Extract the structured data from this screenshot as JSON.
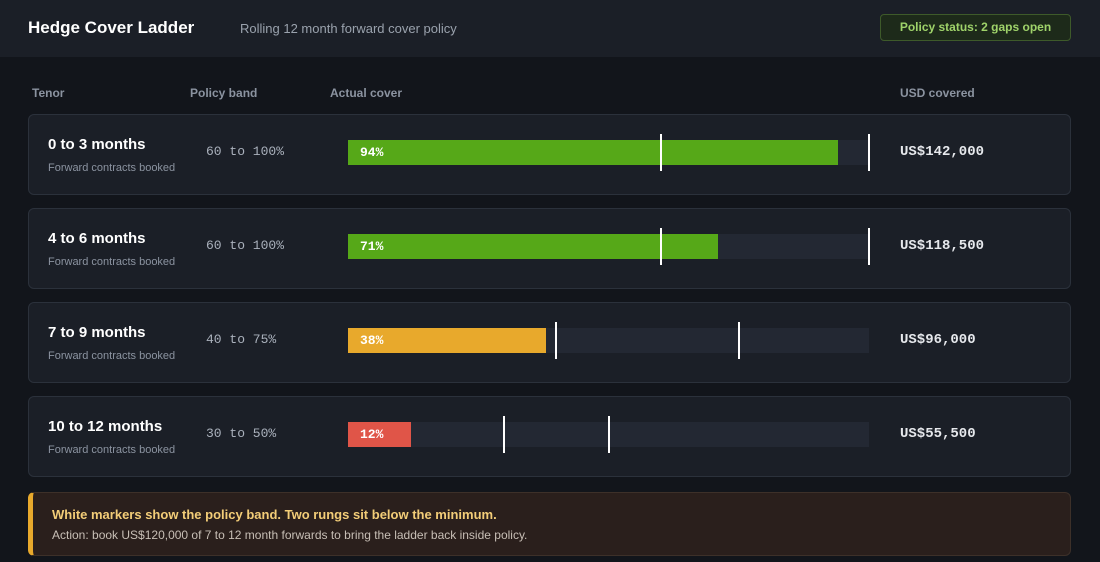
{
  "header": {
    "title": "Hedge Cover Ladder",
    "subtitle": "Rolling 12 month forward cover policy",
    "status": "Policy status: 2 gaps open"
  },
  "columns": {
    "tenor": "Tenor",
    "band": "Policy band",
    "cover": "Actual cover",
    "usd": "USD covered"
  },
  "colors": {
    "in_policy": "#56a818",
    "below_warning": "#e8a92c",
    "below_critical": "#e05548",
    "marker": "#ffffff"
  },
  "rows": [
    {
      "tenor": "0 to 3 months",
      "sub": "Forward contracts booked",
      "band_text": "60 to 100%",
      "band_min": 60,
      "band_max": 100,
      "cover": 94,
      "cover_label": "94%",
      "usd": "US$142,000",
      "color": "#56a818"
    },
    {
      "tenor": "4 to 6 months",
      "sub": "Forward contracts booked",
      "band_text": "60 to 100%",
      "band_min": 60,
      "band_max": 100,
      "cover": 71,
      "cover_label": "71%",
      "usd": "US$118,500",
      "color": "#56a818"
    },
    {
      "tenor": "7 to 9 months",
      "sub": "Forward contracts booked",
      "band_text": "40 to 75%",
      "band_min": 40,
      "band_max": 75,
      "cover": 38,
      "cover_label": "38%",
      "usd": "US$96,000",
      "color": "#e8a92c"
    },
    {
      "tenor": "10 to 12 months",
      "sub": "Forward contracts booked",
      "band_text": "30 to 50%",
      "band_min": 30,
      "band_max": 50,
      "cover": 12,
      "cover_label": "12%",
      "usd": "US$55,500",
      "color": "#e05548"
    }
  ],
  "callout": {
    "title": "White markers show the policy band. Two rungs sit below the minimum.",
    "body": "Action: book US$120,000 of 7 to 12 month forwards to bring the ladder back inside policy."
  }
}
